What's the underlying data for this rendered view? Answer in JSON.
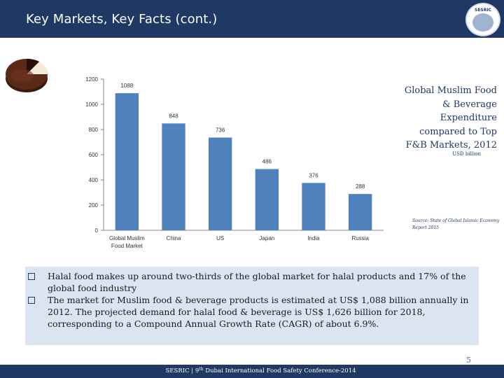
{
  "header": {
    "title": "Key Markets, Key Facts (cont.)",
    "logo_text": "SESRIC"
  },
  "side_panel": {
    "title": "Global Muslim Food & Beverage Expenditure compared to Top F&B Markets, 2012",
    "unit": "USD billion",
    "source": "Source: State of Global Islamic Economy Report 2015"
  },
  "chart_data": {
    "type": "bar",
    "categories": [
      "Global Muslim Food Market",
      "China",
      "US",
      "Japan",
      "India",
      "Russia"
    ],
    "values": [
      1088,
      848,
      736,
      486,
      376,
      288
    ],
    "ylim": [
      0,
      1200
    ],
    "yticks": [
      0,
      200,
      400,
      600,
      800,
      1000,
      1200
    ],
    "bar_color": "#4f81bd",
    "grid": false,
    "legend": "none"
  },
  "notes": [
    "Halal food makes up around two-thirds of the global market for halal products and 17% of the global food industry",
    "The market for Muslim food & beverage products is estimated at US$ 1,088 billion annually in 2012. The projected demand for halal food & beverage is US$ 1,626 billion for 2018, corresponding to a Compound Annual Growth Rate (CAGR) of about 6.9%."
  ],
  "footer": {
    "page_number": "5",
    "text_prefix": "SESRIC | 9",
    "text_sup": "th",
    "text_suffix": " Dubai International Food Safety Conference-2014"
  },
  "colors": {
    "title_bar": "#1f3864",
    "notes_background": "#dbe5f1",
    "accent_text": "#1f3864"
  }
}
